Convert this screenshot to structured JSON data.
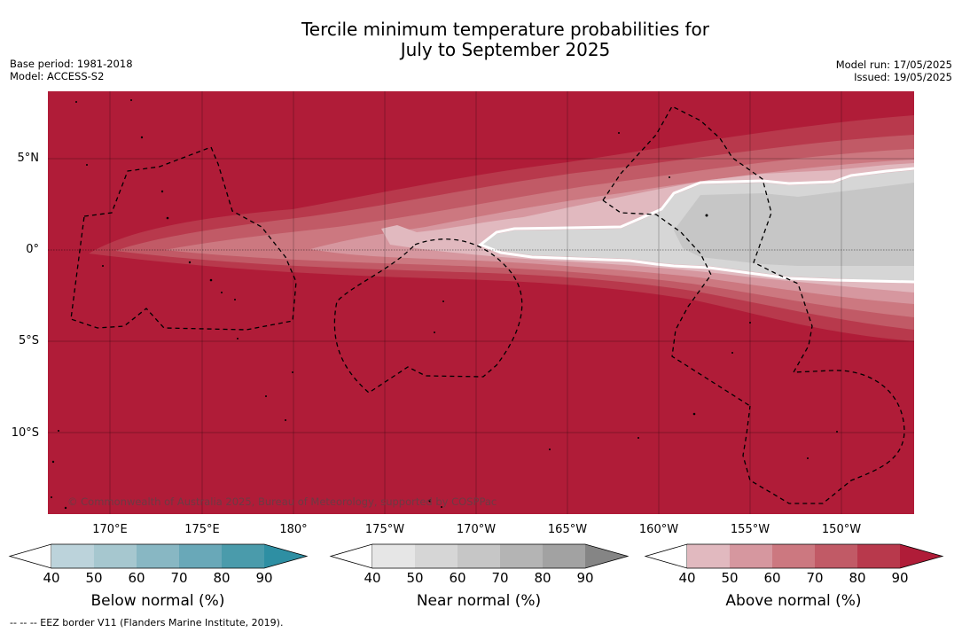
{
  "title_line1": "Tercile minimum temperature probabilities for",
  "title_line2": "July to September 2025",
  "base_period": "Base period: 1981-2018",
  "model": "Model: ACCESS-S2",
  "model_run": "Model run: 17/05/2025",
  "issued": "Issued: 19/05/2025",
  "lat_labels": [
    "5°N",
    "0°",
    "5°S",
    "10°S"
  ],
  "lon_labels": [
    "170°E",
    "175°E",
    "180°",
    "175°W",
    "170°W",
    "165°W",
    "160°W",
    "155°W",
    "150°W"
  ],
  "credit": "© Commonwealth of Australia 2025, Bureau of Meteorology, supported by COSPPac",
  "colorbars": [
    {
      "title": "Below normal (%)",
      "ticks": [
        "40",
        "50",
        "60",
        "70",
        "80",
        "90"
      ],
      "colors": [
        "#bcd3db",
        "#a6c7cf",
        "#88b7c3",
        "#69a8b8",
        "#4a9bab",
        "#2e8fa3"
      ]
    },
    {
      "title": "Near normal (%)",
      "ticks": [
        "40",
        "50",
        "60",
        "70",
        "80",
        "90"
      ],
      "colors": [
        "#e6e6e6",
        "#d6d6d6",
        "#c6c6c6",
        "#b4b4b4",
        "#a2a2a2",
        "#858585"
      ]
    },
    {
      "title": "Above normal (%)",
      "ticks": [
        "40",
        "50",
        "60",
        "70",
        "80",
        "90"
      ],
      "colors": [
        "#e1b9bf",
        "#d6979f",
        "#cc7880",
        "#c15a66",
        "#b8394c",
        "#b01c38"
      ]
    }
  ],
  "footnote": "--  --  -- EEZ border V11 (Flanders Marine Institute, 2019)."
}
